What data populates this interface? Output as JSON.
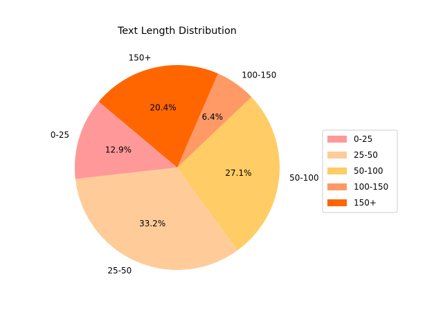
{
  "chart_data": {
    "type": "pie",
    "title": "Text Length Distribution",
    "categories": [
      "0-25",
      "25-50",
      "50-100",
      "100-150",
      "150+"
    ],
    "values": [
      12.9,
      33.2,
      27.1,
      6.4,
      20.4
    ],
    "percent_labels": [
      "12.9%",
      "33.2%",
      "27.1%",
      "6.4%",
      "20.4%"
    ],
    "colors": [
      "#ff9999",
      "#ffcc99",
      "#ffcc66",
      "#ff9966",
      "#ff6600"
    ],
    "start_angle_deg": 140,
    "direction": "counterclockwise",
    "legend": {
      "position": "right",
      "entries": [
        "0-25",
        "25-50",
        "50-100",
        "100-150",
        "150+"
      ]
    }
  }
}
